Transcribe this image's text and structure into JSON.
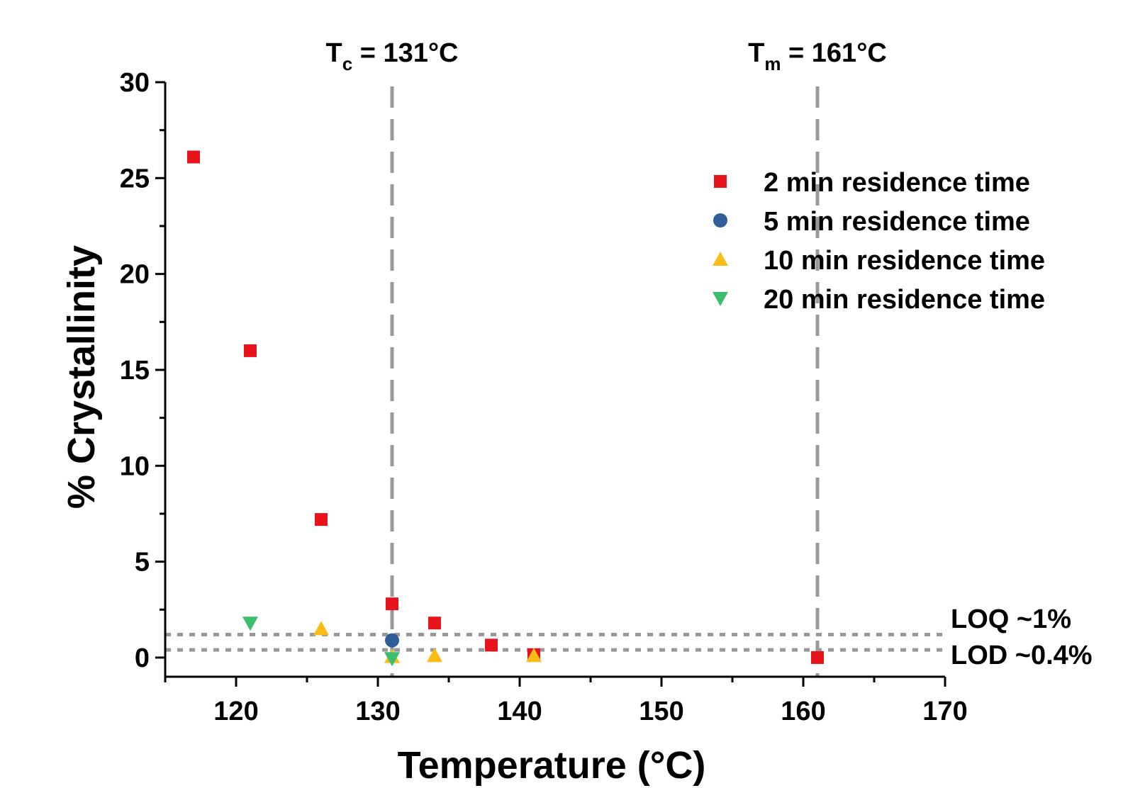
{
  "chart_data": {
    "type": "scatter",
    "title": "",
    "xlabel": "Temperature (°C)",
    "ylabel": "% Crystallinity",
    "xlim": [
      115,
      170
    ],
    "ylim": [
      -1,
      30
    ],
    "x_ticks": [
      120,
      130,
      140,
      150,
      160,
      170
    ],
    "x_tick_labels": [
      "120",
      "130",
      "140",
      "150",
      "160",
      "170"
    ],
    "y_ticks": [
      0,
      5,
      10,
      15,
      20,
      25,
      30
    ],
    "y_tick_labels": [
      "0",
      "5",
      "10",
      "15",
      "20",
      "25",
      "30"
    ],
    "grid": false,
    "legend_position": "top-right",
    "series": [
      {
        "name": "2 min residence time",
        "marker": "square",
        "color": "#e8141b",
        "x": [
          117,
          121,
          126,
          131,
          134,
          138,
          141,
          161
        ],
        "y": [
          26.1,
          16.0,
          7.2,
          2.8,
          1.8,
          0.65,
          0.15,
          0.0
        ]
      },
      {
        "name": "5 min residence time",
        "marker": "circle",
        "color": "#2e5d99",
        "x": [
          131
        ],
        "y": [
          0.9
        ]
      },
      {
        "name": "10 min residence time",
        "marker": "triangle-up",
        "color": "#fbbc17",
        "x": [
          126,
          131,
          134,
          141
        ],
        "y": [
          1.5,
          0.05,
          0.1,
          0.1
        ]
      },
      {
        "name": "20 min residence time",
        "marker": "triangle-down",
        "color": "#3bbf6d",
        "x": [
          121,
          131
        ],
        "y": [
          1.8,
          -0.05
        ]
      }
    ],
    "vertical_lines": [
      {
        "x": 131,
        "label_main": "T",
        "label_sub": "c",
        "label_rest": " = 131°C",
        "style": "dashed",
        "color": "#999999"
      },
      {
        "x": 161,
        "label_main": "T",
        "label_sub": "m",
        "label_rest": " = 161°C",
        "style": "dashed",
        "color": "#999999"
      }
    ],
    "horizontal_lines": [
      {
        "y": 1.2,
        "label": "LOQ ~1%",
        "style": "dotted",
        "color": "#999999"
      },
      {
        "y": 0.4,
        "label": "LOD ~0.4%",
        "style": "dotted",
        "color": "#999999"
      }
    ]
  }
}
